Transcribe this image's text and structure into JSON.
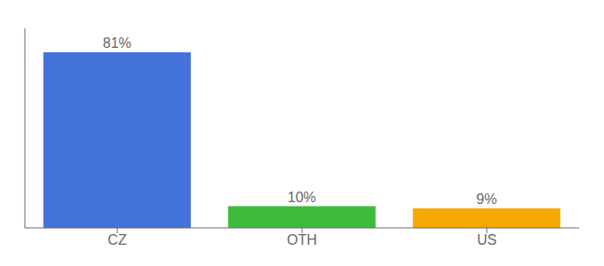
{
  "chart_data": {
    "type": "bar",
    "categories": [
      "CZ",
      "OTH",
      "US"
    ],
    "values": [
      81,
      10,
      9
    ],
    "value_labels": [
      "81%",
      "10%",
      "9%"
    ],
    "colors": [
      "#4472db",
      "#3dbb3d",
      "#f5a800"
    ],
    "ylim": [
      0,
      92
    ],
    "data_labels": true,
    "tick_labels": "x",
    "grid": false
  }
}
